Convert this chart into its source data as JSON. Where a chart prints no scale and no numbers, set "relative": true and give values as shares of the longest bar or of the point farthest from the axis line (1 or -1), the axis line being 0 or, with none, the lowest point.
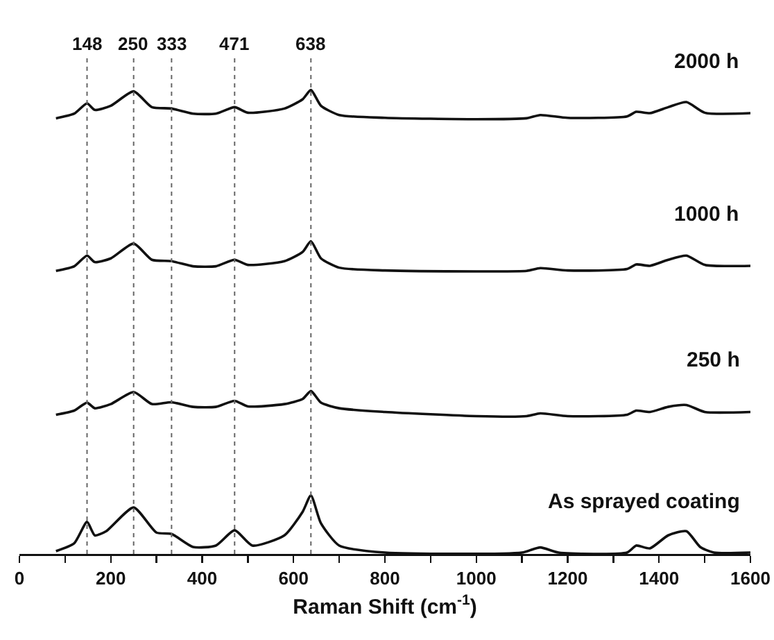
{
  "chart_data": {
    "type": "line",
    "relative": true,
    "xlabel": "Raman Shift (cm$^{-1}$)",
    "xlim": [
      0,
      1600
    ],
    "xticks": [
      0,
      {
        "value": 100,
        "label": null
      },
      200,
      {
        "value": 300,
        "label": null
      },
      400,
      {
        "value": 500,
        "label": null
      },
      600,
      {
        "value": 700,
        "label": null
      },
      800,
      {
        "value": 900,
        "label": null
      },
      1000,
      {
        "value": 1100,
        "label": null
      },
      1200,
      {
        "value": 1300,
        "label": null
      },
      1400,
      {
        "value": 1500,
        "label": null
      },
      1600
    ],
    "tick_labels": "x",
    "grid": false,
    "legend": false,
    "marker": "none",
    "line_style": "solid",
    "x": [
      80,
      120,
      148,
      165,
      200,
      250,
      290,
      333,
      380,
      430,
      471,
      500,
      580,
      620,
      638,
      660,
      700,
      800,
      1000,
      1110,
      1140,
      1200,
      1330,
      1350,
      1380,
      1420,
      1460,
      1500,
      1600
    ],
    "series": [
      {
        "name": "2000 h",
        "color": "#111111",
        "values": [
          0.939,
          0.949,
          0.971,
          0.957,
          0.966,
          0.997,
          0.963,
          0.96,
          0.949,
          0.949,
          0.963,
          0.951,
          0.96,
          0.98,
          1,
          0.966,
          0.946,
          0.94,
          0.937,
          0.939,
          0.946,
          0.94,
          0.943,
          0.953,
          0.95,
          0.963,
          0.974,
          0.951,
          0.95
        ]
      },
      {
        "name": "1000 h",
        "color": "#111111",
        "values": [
          0.61,
          0.62,
          0.643,
          0.629,
          0.637,
          0.669,
          0.634,
          0.631,
          0.62,
          0.62,
          0.634,
          0.623,
          0.631,
          0.651,
          0.674,
          0.637,
          0.617,
          0.611,
          0.609,
          0.61,
          0.616,
          0.611,
          0.614,
          0.624,
          0.621,
          0.634,
          0.643,
          0.623,
          0.621
        ]
      },
      {
        "name": "250 h",
        "color": "#111111",
        "values": [
          0.3,
          0.309,
          0.326,
          0.314,
          0.323,
          0.349,
          0.323,
          0.327,
          0.317,
          0.317,
          0.33,
          0.318,
          0.323,
          0.334,
          0.351,
          0.326,
          0.314,
          0.306,
          0.297,
          0.297,
          0.303,
          0.297,
          0.3,
          0.309,
          0.306,
          0.317,
          0.321,
          0.306,
          0.306
        ]
      },
      {
        "name": "As sprayed coating",
        "color": "#111111",
        "x": [
          80,
          120,
          148,
          165,
          190,
          250,
          300,
          333,
          380,
          430,
          471,
          510,
          580,
          620,
          638,
          660,
          700,
          800,
          1100,
          1140,
          1180,
          1330,
          1350,
          1380,
          1420,
          1460,
          1490,
          1520,
          1600
        ],
        "values": [
          0.006,
          0.023,
          0.069,
          0.04,
          0.049,
          0.1,
          0.046,
          0.043,
          0.015,
          0.018,
          0.051,
          0.018,
          0.04,
          0.091,
          0.126,
          0.066,
          0.018,
          0.003,
          0.003,
          0.014,
          0.003,
          0.003,
          0.018,
          0.012,
          0.04,
          0.049,
          0.015,
          0.003,
          0.003
        ]
      }
    ],
    "ref_lines": [
      {
        "axis": "x",
        "value": 148,
        "label": "148",
        "color": "#666666",
        "line_style": "dotted"
      },
      {
        "axis": "x",
        "value": 250,
        "label": "250",
        "color": "#666666",
        "line_style": "dotted"
      },
      {
        "axis": "x",
        "value": 333,
        "label": "333",
        "color": "#666666",
        "line_style": "dotted"
      },
      {
        "axis": "x",
        "value": 471,
        "label": "471",
        "color": "#666666",
        "line_style": "dotted"
      },
      {
        "axis": "x",
        "value": 638,
        "label": "638",
        "color": "#666666",
        "line_style": "dotted"
      }
    ]
  }
}
